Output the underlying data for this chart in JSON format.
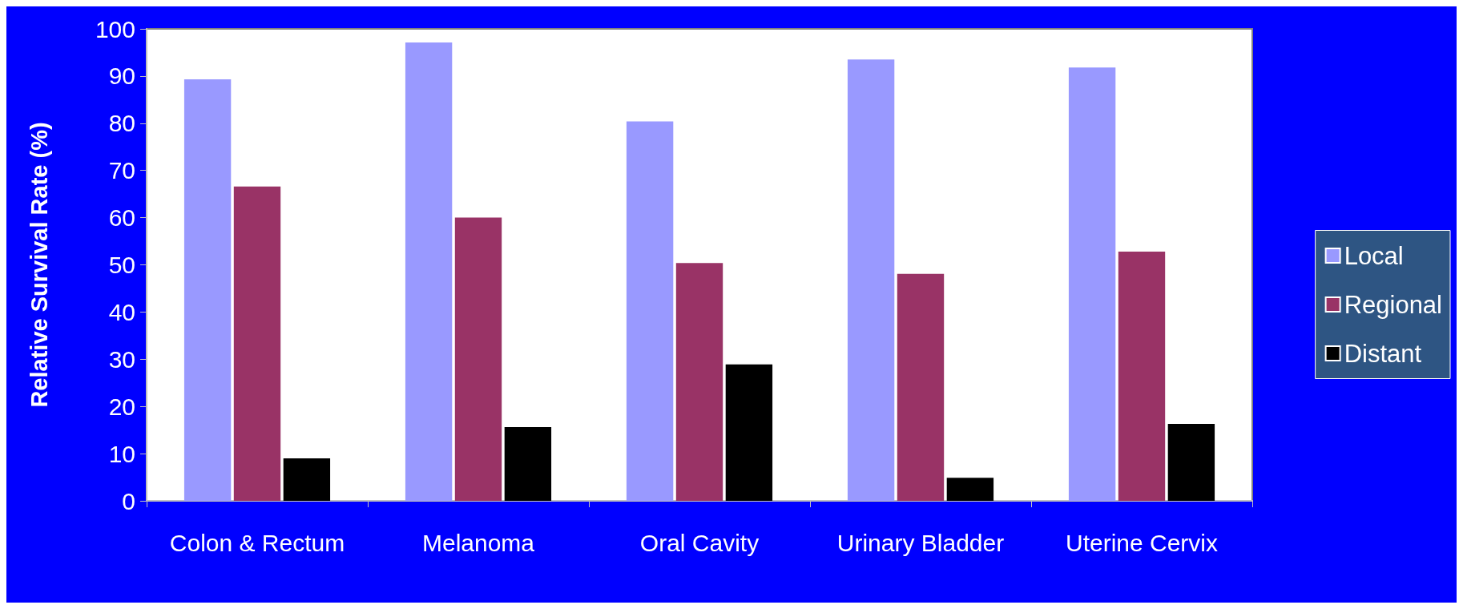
{
  "chart_data": {
    "type": "bar",
    "ylabel": "Relative Survival Rate (%)",
    "categories": [
      "Colon & Rectum",
      "Melanoma",
      "Oral Cavity",
      "Urinary Bladder",
      "Uterine Cervix"
    ],
    "series": [
      {
        "name": "Local",
        "color": "#9999ff",
        "values": [
          89.3,
          97.1,
          80.4,
          93.5,
          91.8
        ]
      },
      {
        "name": "Regional",
        "color": "#993366",
        "values": [
          66.6,
          60.0,
          50.4,
          48.1,
          52.8
        ]
      },
      {
        "name": "Distant",
        "color": "#000000",
        "values": [
          9.0,
          15.6,
          28.9,
          4.9,
          16.3
        ]
      }
    ],
    "ylim": [
      0,
      100
    ],
    "yticks": [
      0,
      10,
      20,
      30,
      40,
      50,
      60,
      70,
      80,
      90,
      100
    ],
    "grid": false,
    "legend": "right"
  }
}
